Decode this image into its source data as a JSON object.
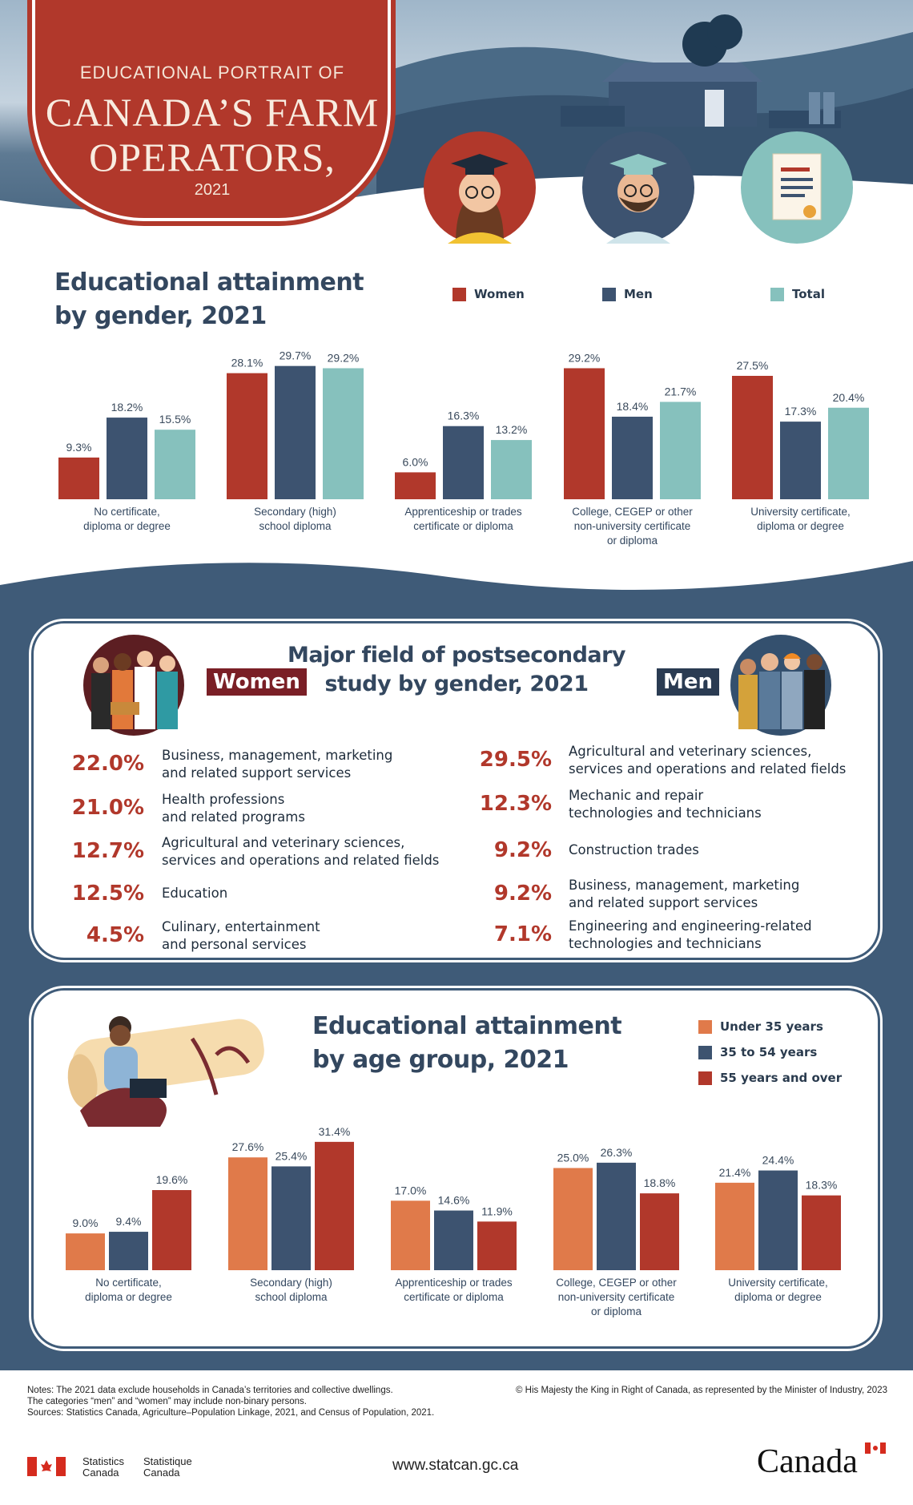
{
  "header": {
    "line1": "EDUCATIONAL PORTRAIT OF",
    "line2": "CANADA’S FARM",
    "line3": "OPERATORS,",
    "year": "2021"
  },
  "section1": {
    "title_line1": "Educational attainment",
    "title_line2": "by gender, 2021",
    "legend": [
      {
        "label": "Women",
        "color": "#b1382b"
      },
      {
        "label": "Men",
        "color": "#3d5370"
      },
      {
        "label": "Total",
        "color": "#86c1bd"
      }
    ]
  },
  "section2": {
    "title_line1": "Major field of postsecondary",
    "title_line2": "study by gender, 2021",
    "women_label": "Women",
    "men_label": "Men",
    "women": [
      {
        "pct": "22.0%",
        "l1": "Business, management, marketing",
        "l2": "and related support services"
      },
      {
        "pct": "21.0%",
        "l1": "Health professions",
        "l2": "and related programs"
      },
      {
        "pct": "12.7%",
        "l1": "Agricultural and veterinary sciences,",
        "l2": "services and operations and related fields"
      },
      {
        "pct": "12.5%",
        "l1": "Education",
        "l2": ""
      },
      {
        "pct": "4.5%",
        "l1": "Culinary, entertainment",
        "l2": "and personal services"
      }
    ],
    "men": [
      {
        "pct": "29.5%",
        "l1": "Agricultural and veterinary sciences,",
        "l2": "services and operations and related fields"
      },
      {
        "pct": "12.3%",
        "l1": "Mechanic and repair",
        "l2": "technologies and technicians"
      },
      {
        "pct": "9.2%",
        "l1": "Construction trades",
        "l2": ""
      },
      {
        "pct": "9.2%",
        "l1": "Business, management, marketing",
        "l2": "and related support services"
      },
      {
        "pct": "7.1%",
        "l1": "Engineering and engineering-related",
        "l2": "technologies and technicians"
      }
    ]
  },
  "section3": {
    "title_line1": "Educational attainment",
    "title_line2": "by age group, 2021",
    "legend": [
      {
        "label": "Under 35 years",
        "color": "#e07a4a"
      },
      {
        "label": "35 to 54 years",
        "color": "#3d5370"
      },
      {
        "label": "55 years and over",
        "color": "#b1382b"
      }
    ]
  },
  "chart_data": [
    {
      "type": "bar",
      "title": "Educational attainment by gender, 2021",
      "categories": [
        [
          "No certificate,",
          "diploma or degree"
        ],
        [
          "Secondary (high)",
          "school diploma"
        ],
        [
          "Apprenticeship or trades",
          "certificate or diploma"
        ],
        [
          "College, CEGEP or other",
          "non-university certificate",
          "or diploma"
        ],
        [
          "University certificate,",
          "diploma or degree"
        ]
      ],
      "series": [
        {
          "name": "Women",
          "color": "#b1382b",
          "values": [
            9.3,
            28.1,
            6.0,
            29.2,
            27.5
          ],
          "labels": [
            "9.3%",
            "28.1%",
            "6.0%",
            "29.2%",
            "27.5%"
          ]
        },
        {
          "name": "Men",
          "color": "#3d5370",
          "values": [
            18.2,
            29.7,
            16.3,
            18.4,
            17.3
          ],
          "labels": [
            "18.2%",
            "29.7%",
            "16.3%",
            "18.4%",
            "17.3%"
          ]
        },
        {
          "name": "Total",
          "color": "#86c1bd",
          "values": [
            15.5,
            29.2,
            13.2,
            21.7,
            20.4
          ],
          "labels": [
            "15.5%",
            "29.2%",
            "13.2%",
            "21.7%",
            "20.4%"
          ]
        }
      ],
      "ylim": [
        0,
        31
      ]
    },
    {
      "type": "bar",
      "title": "Educational attainment by age group, 2021",
      "categories": [
        [
          "No certificate,",
          "diploma or degree"
        ],
        [
          "Secondary (high)",
          "school diploma"
        ],
        [
          "Apprenticeship or trades",
          "certificate or diploma"
        ],
        [
          "College, CEGEP or other",
          "non-university certificate",
          "or diploma"
        ],
        [
          "University certificate,",
          "diploma or degree"
        ]
      ],
      "series": [
        {
          "name": "Under 35 years",
          "color": "#e07a4a",
          "values": [
            9.0,
            27.6,
            17.0,
            25.0,
            21.4
          ],
          "labels": [
            "9.0%",
            "27.6%",
            "17.0%",
            "25.0%",
            "21.4%"
          ]
        },
        {
          "name": "35 to 54 years",
          "color": "#3d5370",
          "values": [
            9.4,
            25.4,
            14.6,
            26.3,
            24.4
          ],
          "labels": [
            "9.4%",
            "25.4%",
            "14.6%",
            "26.3%",
            "24.4%"
          ]
        },
        {
          "name": "55 years and over",
          "color": "#b1382b",
          "values": [
            19.6,
            31.4,
            11.9,
            18.8,
            18.3
          ],
          "labels": [
            "19.6%",
            "31.4%",
            "11.9%",
            "18.8%",
            "18.3%"
          ]
        }
      ],
      "ylim": [
        0,
        33
      ]
    }
  ],
  "footer": {
    "notes1": "Notes: The 2021 data exclude households in Canada’s territories and collective dwellings.",
    "notes2": "The categories “men” and “women” may include non-binary persons.",
    "sources": "Sources: Statistics Canada, Agriculture–Population Linkage, 2021, and Census of Population, 2021.",
    "copyright": "© His Majesty the King in Right of Canada, as represented by the Minister of Industry, 2023",
    "statcan_en": [
      "Statistics",
      "Canada"
    ],
    "statcan_fr": [
      "Statistique",
      "Canada"
    ],
    "url": "www.statcan.gc.ca",
    "wordmark": "Canada"
  }
}
